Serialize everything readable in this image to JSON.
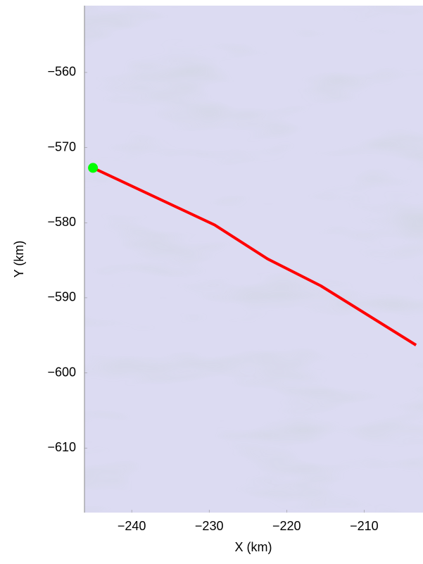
{
  "chart_data": {
    "type": "line",
    "xlabel": "X (km)",
    "ylabel": "Y (km)",
    "xlim": [
      -246.1,
      -202.4
    ],
    "ylim": [
      -618.6,
      -551.1
    ],
    "xticks": [
      {
        "value": -240,
        "label": "−240"
      },
      {
        "value": -230,
        "label": "−230"
      },
      {
        "value": -220,
        "label": "−220"
      },
      {
        "value": -210,
        "label": "−210"
      }
    ],
    "yticks": [
      {
        "value": -560,
        "label": "−560"
      },
      {
        "value": -570,
        "label": "−570"
      },
      {
        "value": -580,
        "label": "−580"
      },
      {
        "value": -590,
        "label": "−590"
      },
      {
        "value": -600,
        "label": "−600"
      },
      {
        "value": -610,
        "label": "−610"
      }
    ],
    "background": "#dcdbf2",
    "series": [
      {
        "color": "#ff0000",
        "x": [
          -245.0,
          -229.3,
          -222.5,
          -215.6,
          -203.3
        ],
        "y": [
          -572.7,
          -580.3,
          -584.8,
          -588.4,
          -596.3
        ]
      }
    ],
    "marker": {
      "color": "#00ff00",
      "x": -245.0,
      "y": -572.7
    }
  }
}
